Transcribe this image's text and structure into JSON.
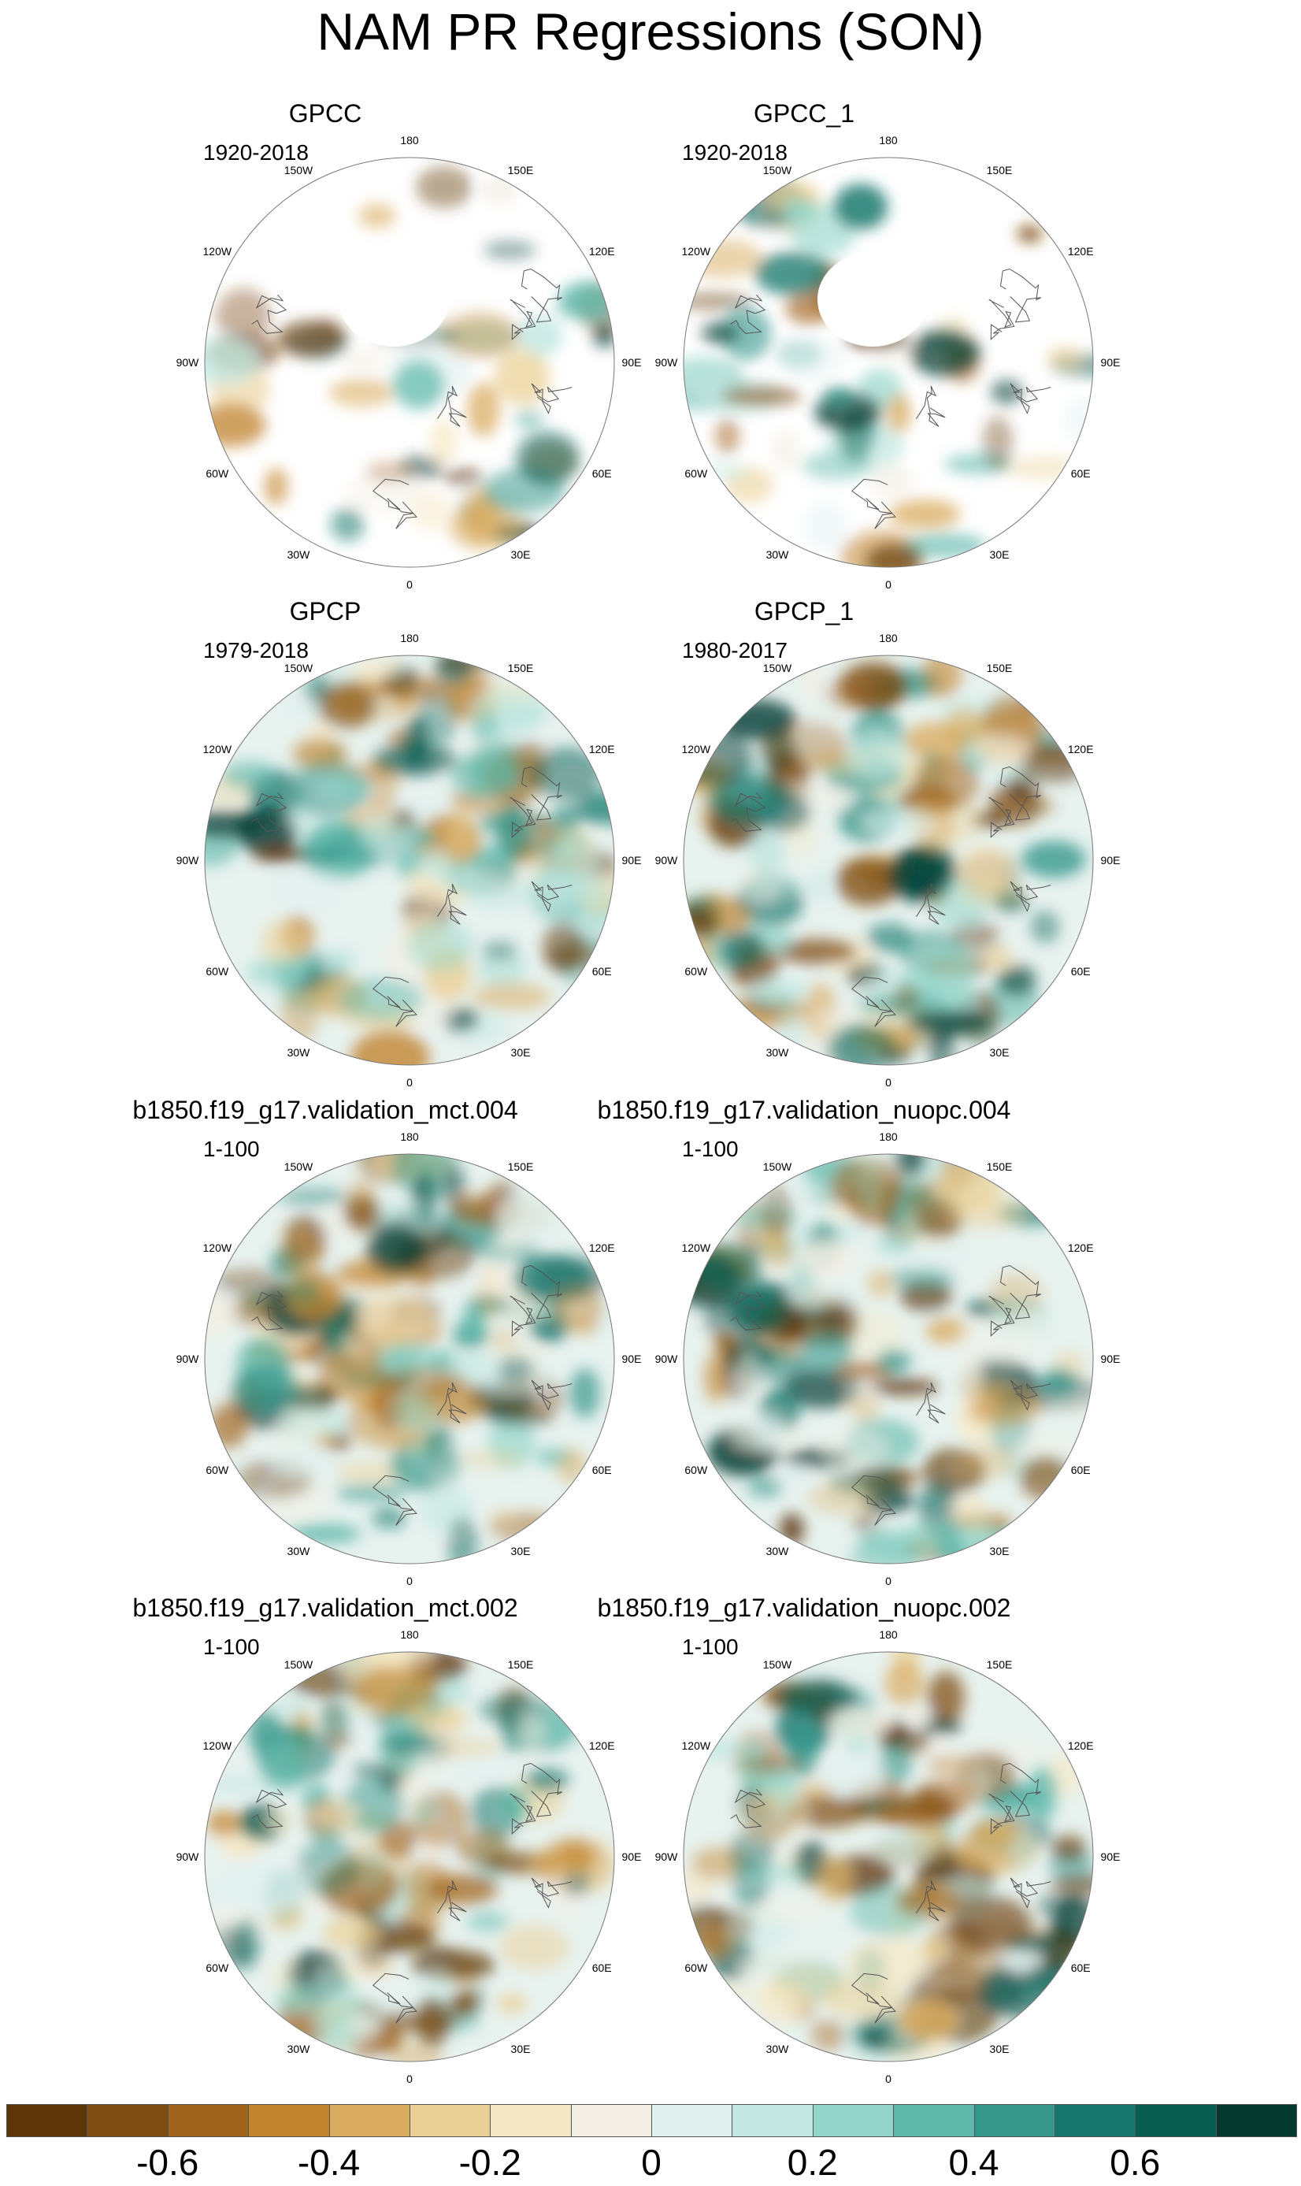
{
  "title": "NAM PR Regressions (SON)",
  "panels": [
    {
      "title": "GPCC",
      "period": "1920-2018",
      "sparse": true
    },
    {
      "title": "GPCC_1",
      "period": "1920-2018",
      "sparse": true
    },
    {
      "title": "GPCP",
      "period": "1979-2018",
      "sparse": false
    },
    {
      "title": "GPCP_1",
      "period": "1980-2017",
      "sparse": false
    },
    {
      "title": "b1850.f19_g17.validation_mct.004",
      "period": "1-100",
      "sparse": false
    },
    {
      "title": "b1850.f19_g17.validation_nuopc.004",
      "period": "1-100",
      "sparse": false
    },
    {
      "title": "b1850.f19_g17.validation_mct.002",
      "period": "1-100",
      "sparse": false
    },
    {
      "title": "b1850.f19_g17.validation_nuopc.002",
      "period": "1-100",
      "sparse": false
    }
  ],
  "longitude_labels": [
    "180",
    "150E",
    "120E",
    "90E",
    "60E",
    "30E",
    "0",
    "30W",
    "60W",
    "90W",
    "120W",
    "150W"
  ],
  "colorbar": {
    "colors": [
      "#5c3609",
      "#7d4c10",
      "#a0631c",
      "#c1852f",
      "#d8ab5e",
      "#ead096",
      "#f6e8c5",
      "#f3efe4",
      "#e0f0ef",
      "#c3e8e2",
      "#93d5c9",
      "#5fb8aa",
      "#35978a",
      "#16786c",
      "#0a5d51",
      "#03392f"
    ],
    "tick_labels": [
      "-0.6",
      "-0.4",
      "-0.2",
      "0",
      "0.2",
      "0.4",
      "0.6"
    ]
  }
}
